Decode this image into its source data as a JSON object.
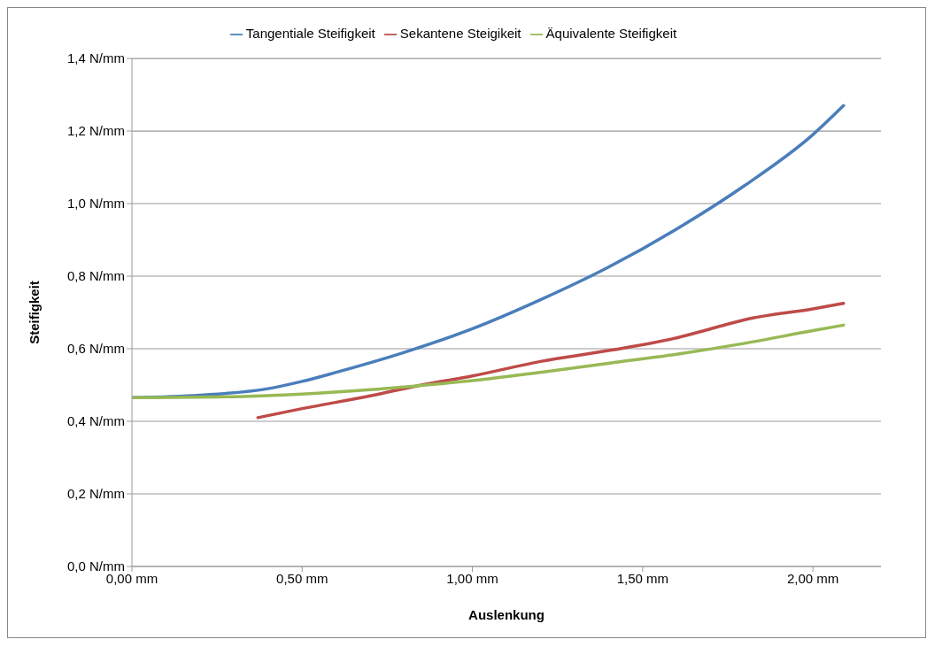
{
  "chart_data": {
    "type": "line",
    "xlabel": "Auslenkung",
    "ylabel": "Steifigkeit",
    "xlim": [
      0,
      2.2
    ],
    "ylim": [
      0,
      1.4
    ],
    "xticks": [
      {
        "value": 0,
        "label": "0,00 mm"
      },
      {
        "value": 0.5,
        "label": "0,50 mm"
      },
      {
        "value": 1,
        "label": "1,00 mm"
      },
      {
        "value": 1.5,
        "label": "1,50 mm"
      },
      {
        "value": 2,
        "label": "2,00 mm"
      }
    ],
    "yticks": [
      {
        "value": 0,
        "label": "0,0 N/mm"
      },
      {
        "value": 0.2,
        "label": "0,2 N/mm"
      },
      {
        "value": 0.4,
        "label": "0,4 N/mm"
      },
      {
        "value": 0.6,
        "label": "0,6 N/mm"
      },
      {
        "value": 0.8,
        "label": "0,8 N/mm"
      },
      {
        "value": 1,
        "label": "1,0 N/mm"
      },
      {
        "value": 1.2,
        "label": "1,2 N/mm"
      },
      {
        "value": 1.4,
        "label": "1,4 N/mm"
      }
    ],
    "grid": "y",
    "legend": "top",
    "marker": "none",
    "line_style": "solid",
    "series": [
      {
        "name": "Tangentiale Steifigkeit",
        "color": "#4a7ebb",
        "x": [
          0,
          0.2,
          0.4,
          0.5,
          0.6,
          0.8,
          1.0,
          1.2,
          1.4,
          1.6,
          1.8,
          2.0,
          2.09
        ],
        "values": [
          0.465,
          0.472,
          0.49,
          0.51,
          0.535,
          0.59,
          0.655,
          0.735,
          0.825,
          0.93,
          1.05,
          1.19,
          1.27
        ]
      },
      {
        "name": "Sekantene Steigikeit",
        "color": "#be4b48",
        "x": [
          0.37,
          0.5,
          0.7,
          0.85,
          1.0,
          1.2,
          1.4,
          1.6,
          1.7,
          1.8,
          2.0,
          2.09
        ],
        "values": [
          0.41,
          0.435,
          0.47,
          0.5,
          0.525,
          0.565,
          0.595,
          0.63,
          0.655,
          0.68,
          0.71,
          0.725
        ]
      },
      {
        "name": "Äquivalente Steifigkeit",
        "color": "#98b954",
        "x": [
          0,
          0.3,
          0.5,
          0.7,
          0.9,
          1.0,
          1.2,
          1.4,
          1.6,
          1.8,
          2.0,
          2.09
        ],
        "values": [
          0.465,
          0.468,
          0.475,
          0.487,
          0.503,
          0.512,
          0.535,
          0.56,
          0.585,
          0.615,
          0.65,
          0.665
        ]
      }
    ]
  }
}
